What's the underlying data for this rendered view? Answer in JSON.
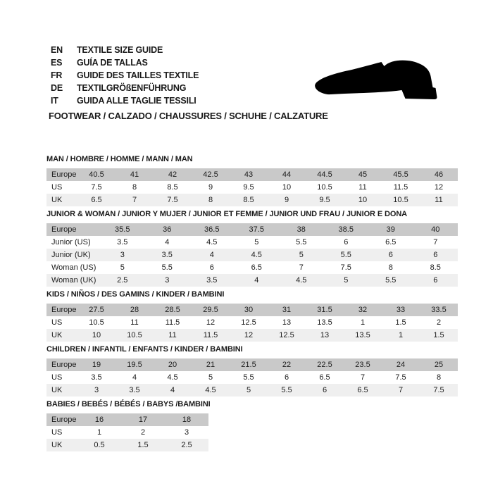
{
  "header": {
    "languages": [
      {
        "code": "EN",
        "text": "TEXTILE SIZE GUIDE"
      },
      {
        "code": "ES",
        "text": "GUÍA DE TALLAS"
      },
      {
        "code": "FR",
        "text": "GUIDE DES TAILLES TEXTILE"
      },
      {
        "code": "DE",
        "text": "TEXTILGRÖßENFÜHRUNG"
      },
      {
        "code": "IT",
        "text": "GUIDA ALLE TAGLIE TESSILI"
      }
    ],
    "category_title": "FOOTWEAR / CALZADO / CHAUSSURES / SCHUHE / CALZATURE",
    "icon": "dress-shoe-silhouette"
  },
  "colors": {
    "header_row_bg": "#c9c9c9",
    "alt_row_bg": "#efefef",
    "text": "#1a1a1a",
    "shoe": "#000000"
  },
  "tables": [
    {
      "title": "MAN / HOMBRE / HOMME / MANN / MAN",
      "rows": [
        {
          "label": "Europe",
          "header": true,
          "values": [
            "40.5",
            "41",
            "42",
            "42.5",
            "43",
            "44",
            "44.5",
            "45",
            "45.5",
            "46"
          ]
        },
        {
          "label": "US",
          "values": [
            "7.5",
            "8",
            "8.5",
            "9",
            "9.5",
            "10",
            "10.5",
            "11",
            "11.5",
            "12"
          ]
        },
        {
          "label": "UK",
          "values": [
            "6.5",
            "7",
            "7.5",
            "8",
            "8.5",
            "9",
            "9.5",
            "10",
            "10.5",
            "11"
          ]
        }
      ]
    },
    {
      "title": "JUNIOR & WOMAN / JUNIOR Y MUJER / JUNIOR ET FEMME / JUNIOR UND FRAU / JUNIOR E DONA",
      "rows": [
        {
          "label": "Europe",
          "header": true,
          "values": [
            "35.5",
            "36",
            "36.5",
            "37.5",
            "38",
            "38.5",
            "39",
            "40"
          ]
        },
        {
          "label": "Junior (US)",
          "values": [
            "3.5",
            "4",
            "4.5",
            "5",
            "5.5",
            "6",
            "6.5",
            "7"
          ]
        },
        {
          "label": "Junior (UK)",
          "values": [
            "3",
            "3.5",
            "4",
            "4.5",
            "5",
            "5.5",
            "6",
            "6"
          ]
        },
        {
          "label": "Woman (US)",
          "values": [
            "5",
            "5.5",
            "6",
            "6.5",
            "7",
            "7.5",
            "8",
            "8.5"
          ]
        },
        {
          "label": "Woman (UK)",
          "values": [
            "2.5",
            "3",
            "3.5",
            "4",
            "4.5",
            "5",
            "5.5",
            "6"
          ]
        }
      ]
    },
    {
      "title": "KIDS / NIÑOS / DES GAMINS / KINDER / BAMBINI",
      "rows": [
        {
          "label": "Europe",
          "header": true,
          "values": [
            "27.5",
            "28",
            "28.5",
            "29.5",
            "30",
            "31",
            "31.5",
            "32",
            "33",
            "33.5"
          ]
        },
        {
          "label": "US",
          "values": [
            "10.5",
            "11",
            "11.5",
            "12",
            "12.5",
            "13",
            "13.5",
            "1",
            "1.5",
            "2"
          ]
        },
        {
          "label": "UK",
          "values": [
            "10",
            "10.5",
            "11",
            "11.5",
            "12",
            "12.5",
            "13",
            "13.5",
            "1",
            "1.5"
          ]
        }
      ]
    },
    {
      "title": "CHILDREN / INFANTIL / ENFANTS / KINDER / BAMBINI",
      "rows": [
        {
          "label": "Europe",
          "header": true,
          "values": [
            "19",
            "19.5",
            "20",
            "21",
            "21.5",
            "22",
            "22.5",
            "23.5",
            "24",
            "25"
          ]
        },
        {
          "label": "US",
          "values": [
            "3.5",
            "4",
            "4.5",
            "5",
            "5.5",
            "6",
            "6.5",
            "7",
            "7.5",
            "8"
          ]
        },
        {
          "label": "UK",
          "values": [
            "3",
            "3.5",
            "4",
            "4.5",
            "5",
            "5.5",
            "6",
            "6.5",
            "7",
            "7.5"
          ]
        }
      ]
    },
    {
      "title": "BABIES / BEBÉS / BÉBÉS / BABYS /BAMBINI",
      "narrow": true,
      "rows": [
        {
          "label": "Europe",
          "header": true,
          "values": [
            "16",
            "17",
            "18"
          ]
        },
        {
          "label": "US",
          "values": [
            "1",
            "2",
            "3"
          ]
        },
        {
          "label": "UK",
          "values": [
            "0.5",
            "1.5",
            "2.5"
          ]
        }
      ]
    }
  ]
}
